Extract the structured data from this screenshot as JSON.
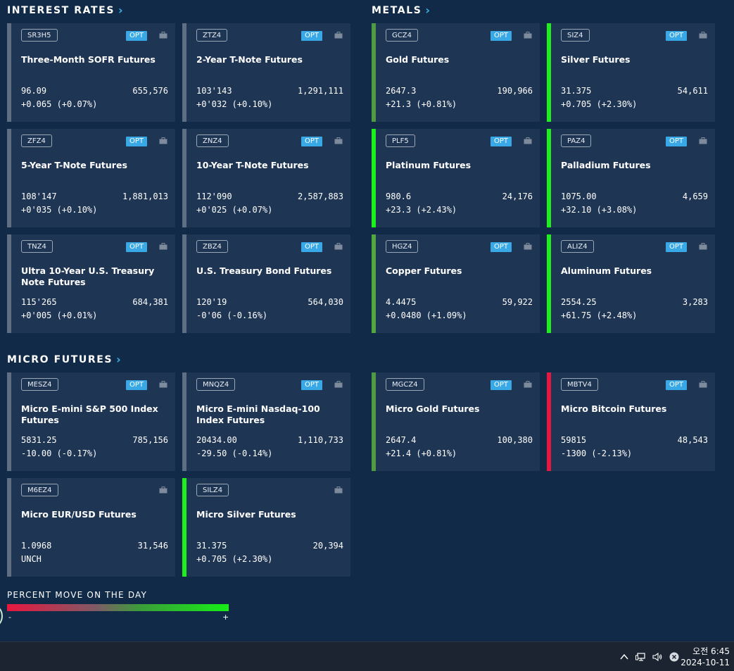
{
  "sections": {
    "interest_rates": {
      "title": "INTEREST RATES",
      "cards": [
        {
          "symbol": "SR3H5",
          "opt": "OPT",
          "name": "Three-Month SOFR Futures",
          "price": "96.09",
          "volume": "655,576",
          "change": "+0.065 (+0.07%)",
          "move_color": "#5e6f84"
        },
        {
          "symbol": "ZTZ4",
          "opt": "OPT",
          "name": "2-Year T-Note Futures",
          "price": "103'143",
          "volume": "1,291,111",
          "change": "+0'032 (+0.10%)",
          "move_color": "#5e6f84"
        },
        {
          "symbol": "ZFZ4",
          "opt": "OPT",
          "name": "5-Year T-Note Futures",
          "price": "108'147",
          "volume": "1,881,013",
          "change": "+0'035 (+0.10%)",
          "move_color": "#5e6f84"
        },
        {
          "symbol": "ZNZ4",
          "opt": "OPT",
          "name": "10-Year T-Note Futures",
          "price": "112'090",
          "volume": "2,587,883",
          "change": "+0'025 (+0.07%)",
          "move_color": "#5e6f84"
        },
        {
          "symbol": "TNZ4",
          "opt": "OPT",
          "name": "Ultra 10-Year U.S. Treasury Note Futures",
          "price": "115'265",
          "volume": "684,381",
          "change": "+0'005 (+0.01%)",
          "move_color": "#5e6f84"
        },
        {
          "symbol": "ZBZ4",
          "opt": "OPT",
          "name": "U.S. Treasury Bond Futures",
          "price": "120'19",
          "volume": "564,030",
          "change": "-0'06 (-0.16%)",
          "move_color": "#5e6f84"
        }
      ]
    },
    "metals": {
      "title": "METALS",
      "cards": [
        {
          "symbol": "GCZ4",
          "opt": "OPT",
          "name": "Gold Futures",
          "price": "2647.3",
          "volume": "190,966",
          "change": "+21.3 (+0.81%)",
          "move_color": "#4e9b44"
        },
        {
          "symbol": "SIZ4",
          "opt": "OPT",
          "name": "Silver Futures",
          "price": "31.375",
          "volume": "54,611",
          "change": "+0.705 (+2.30%)",
          "move_color": "#1ef01e"
        },
        {
          "symbol": "PLF5",
          "opt": "OPT",
          "name": "Platinum Futures",
          "price": "980.6",
          "volume": "24,176",
          "change": "+23.3 (+2.43%)",
          "move_color": "#1ef01e"
        },
        {
          "symbol": "PAZ4",
          "opt": "OPT",
          "name": "Palladium Futures",
          "price": "1075.00",
          "volume": "4,659",
          "change": "+32.10 (+3.08%)",
          "move_color": "#1ef01e"
        },
        {
          "symbol": "HGZ4",
          "opt": "OPT",
          "name": "Copper Futures",
          "price": "4.4475",
          "volume": "59,922",
          "change": "+0.0480 (+1.09%)",
          "move_color": "#52a83e"
        },
        {
          "symbol": "ALIZ4",
          "opt": "OPT",
          "name": "Aluminum Futures",
          "price": "2554.25",
          "volume": "3,283",
          "change": "+61.75 (+2.48%)",
          "move_color": "#1ef01e"
        }
      ]
    },
    "micro_futures": {
      "title": "MICRO FUTURES",
      "cards": [
        {
          "symbol": "MESZ4",
          "opt": "OPT",
          "name": "Micro E-mini S&P 500 Index Futures",
          "price": "5831.25",
          "volume": "785,156",
          "change": "-10.00 (-0.17%)",
          "move_color": "#5e6f84"
        },
        {
          "symbol": "MNQZ4",
          "opt": "OPT",
          "name": "Micro E-mini Nasdaq-100 Index Futures",
          "price": "20434.00",
          "volume": "1,110,733",
          "change": "-29.50 (-0.14%)",
          "move_color": "#5e6f84"
        },
        {
          "symbol": "MGCZ4",
          "opt": "OPT",
          "name": "Micro Gold Futures",
          "price": "2647.4",
          "volume": "100,380",
          "change": "+21.4 (+0.81%)",
          "move_color": "#4e9b44"
        },
        {
          "symbol": "MBTV4",
          "opt": "OPT",
          "name": "Micro Bitcoin Futures",
          "price": "59815",
          "volume": "48,543",
          "change": "-1300 (-2.13%)",
          "move_color": "#e8173f"
        },
        {
          "symbol": "M6EZ4",
          "opt": "",
          "name": "Micro EUR/USD Futures",
          "price": "1.0968",
          "volume": "31,546",
          "change": "UNCH",
          "move_color": "#5e6f84"
        },
        {
          "symbol": "SILZ4",
          "opt": "",
          "name": "Micro Silver Futures",
          "price": "31.375",
          "volume": "20,394",
          "change": "+0.705 (+2.30%)",
          "move_color": "#1ef01e"
        }
      ]
    }
  },
  "legend": {
    "title": "PERCENT MOVE ON THE DAY",
    "min_label": "-",
    "max_label": "+"
  },
  "taskbar": {
    "time": "오전 6:45",
    "date": "2024-10-11",
    "icons": [
      "chevron-up-icon",
      "network-icon",
      "volume-icon",
      "close-circle-icon"
    ]
  }
}
